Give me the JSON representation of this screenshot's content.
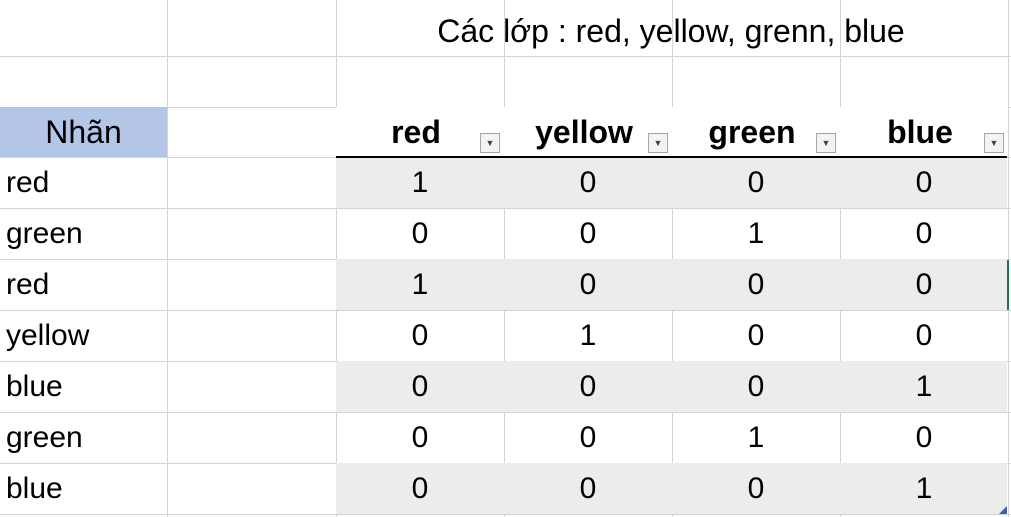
{
  "sheet": {
    "title": "Các lớp : red, yellow, grenn, blue",
    "label_header": "Nhãn",
    "columns": [
      "red",
      "yellow",
      "green",
      "blue"
    ],
    "filter_icon": "dropdown-arrow-icon",
    "rows": [
      {
        "label": "red",
        "values": [
          "1",
          "0",
          "0",
          "0"
        ]
      },
      {
        "label": "green",
        "values": [
          "0",
          "0",
          "1",
          "0"
        ]
      },
      {
        "label": "red",
        "values": [
          "1",
          "0",
          "0",
          "0"
        ]
      },
      {
        "label": "yellow",
        "values": [
          "0",
          "1",
          "0",
          "0"
        ]
      },
      {
        "label": "blue",
        "values": [
          "0",
          "0",
          "0",
          "1"
        ]
      },
      {
        "label": "green",
        "values": [
          "0",
          "0",
          "1",
          "0"
        ]
      },
      {
        "label": "blue",
        "values": [
          "0",
          "0",
          "0",
          "1"
        ]
      }
    ],
    "colors": {
      "label_header_bg": "#b4c6e7",
      "band_bg": "#ececec",
      "gridline": "#d4d4d4",
      "accent": "#217346"
    }
  }
}
